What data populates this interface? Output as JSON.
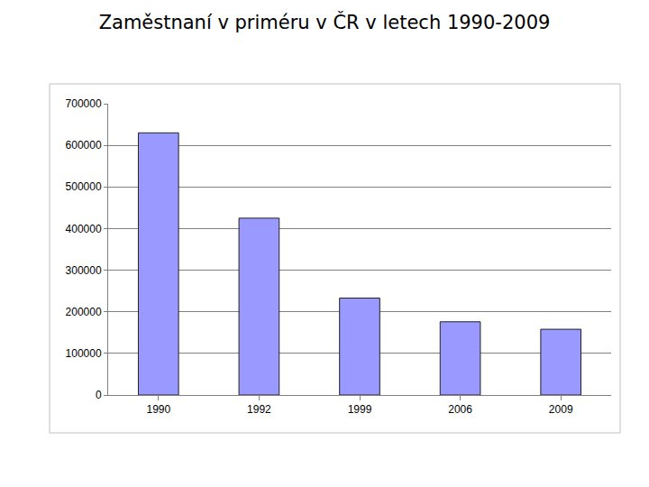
{
  "chart_data": {
    "type": "bar",
    "title": "Zaměstnaní v priméru v ČR v letech 1990-2009",
    "categories": [
      "1990",
      "1992",
      "1999",
      "2006",
      "2009"
    ],
    "values": [
      630000,
      425000,
      233000,
      176000,
      158000
    ],
    "color": "#9999ff",
    "ylim": [
      0,
      700000
    ],
    "yticks": [
      0,
      100000,
      200000,
      300000,
      400000,
      500000,
      600000,
      700000
    ],
    "grid": true
  }
}
